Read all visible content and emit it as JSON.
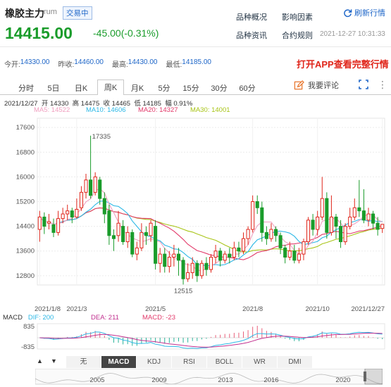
{
  "header": {
    "name": "橡胶主力",
    "code": "rum",
    "status": "交易中",
    "links": [
      "品种概况",
      "影响因素",
      "品种资讯",
      "合约规则"
    ],
    "refresh": "刷新行情",
    "price": "14415.00",
    "change": "-45.00(-0.31%)",
    "datetime": "2021-12-27 10:31:33"
  },
  "stats": {
    "open_label": "今开:",
    "open": "14330.00",
    "prev_label": "昨收:",
    "prev": "14460.00",
    "high_label": "最高:",
    "high": "14430.00",
    "low_label": "最低:",
    "low": "14185.00",
    "app_banner": "打开APP查看完整行情"
  },
  "tabs": [
    "分时",
    "5日",
    "日K",
    "周K",
    "月K",
    "5分",
    "15分",
    "30分",
    "60分"
  ],
  "active_tab": "周K",
  "comment_btn": "我要评论",
  "info": {
    "date": "2021/12/27",
    "open": "开 14330",
    "high": "高 14475",
    "close": "收 14465",
    "low": "低 14185",
    "amp": "幅 0.91%"
  },
  "ma": {
    "ma5": "MA5: 14522",
    "ma10": "MA10: 14606",
    "ma20": "MA20: 14327",
    "ma30": "MA30: 14001"
  },
  "colors": {
    "ma5": "#f0a0c0",
    "ma10": "#2cb8e6",
    "ma20": "#e23a6a",
    "ma30": "#a8c416",
    "up": "#e0261b",
    "down": "#1a9c2b"
  },
  "chart_data": {
    "type": "candlestick",
    "y_ticks": [
      "17600",
      "16800",
      "16000",
      "15200",
      "14400",
      "13600",
      "12800"
    ],
    "ylim": [
      12500,
      17900
    ],
    "x_labels": [
      "2021/1/8",
      "2021/3",
      "2021/5",
      "2021/8",
      "2021/10",
      "2021/12/27"
    ],
    "annotations": {
      "high": "17335",
      "low": "12515"
    },
    "candles": [
      {
        "o": 14300,
        "c": 14700,
        "h": 14900,
        "l": 13900
      },
      {
        "o": 14700,
        "c": 14400,
        "h": 14850,
        "l": 14150
      },
      {
        "o": 14500,
        "c": 14550,
        "h": 14800,
        "l": 14300
      },
      {
        "o": 14450,
        "c": 14200,
        "h": 14650,
        "l": 14050
      },
      {
        "o": 14200,
        "c": 14650,
        "h": 14900,
        "l": 14100
      },
      {
        "o": 14650,
        "c": 14800,
        "h": 15000,
        "l": 14500
      },
      {
        "o": 14800,
        "c": 14900,
        "h": 15100,
        "l": 14600
      },
      {
        "o": 14900,
        "c": 14700,
        "h": 15000,
        "l": 14500
      },
      {
        "o": 14700,
        "c": 14950,
        "h": 15300,
        "l": 14650
      },
      {
        "o": 15000,
        "c": 15500,
        "h": 15700,
        "l": 14900
      },
      {
        "o": 15500,
        "c": 15900,
        "h": 16100,
        "l": 15300
      },
      {
        "o": 15900,
        "c": 15400,
        "h": 17335,
        "l": 15300
      },
      {
        "o": 15500,
        "c": 16000,
        "h": 16150,
        "l": 15400
      },
      {
        "o": 15900,
        "c": 15300,
        "h": 16000,
        "l": 15100
      },
      {
        "o": 15300,
        "c": 14800,
        "h": 15500,
        "l": 14500
      },
      {
        "o": 14900,
        "c": 14100,
        "h": 15100,
        "l": 13800
      },
      {
        "o": 14100,
        "c": 14000,
        "h": 14300,
        "l": 13600
      },
      {
        "o": 14100,
        "c": 14500,
        "h": 14900,
        "l": 13900
      },
      {
        "o": 14400,
        "c": 13900,
        "h": 14600,
        "l": 13800
      },
      {
        "o": 13900,
        "c": 14200,
        "h": 14400,
        "l": 13700
      },
      {
        "o": 14200,
        "c": 13500,
        "h": 14300,
        "l": 13400
      },
      {
        "o": 13500,
        "c": 13700,
        "h": 13900,
        "l": 13300
      },
      {
        "o": 13700,
        "c": 14200,
        "h": 14500,
        "l": 13600
      },
      {
        "o": 14200,
        "c": 14100,
        "h": 14400,
        "l": 13800
      },
      {
        "o": 14100,
        "c": 14500,
        "h": 14600,
        "l": 13900
      },
      {
        "o": 14400,
        "c": 13200,
        "h": 14600,
        "l": 13000
      },
      {
        "o": 13200,
        "c": 13500,
        "h": 13700,
        "l": 12900
      },
      {
        "o": 13500,
        "c": 13100,
        "h": 13700,
        "l": 12900
      },
      {
        "o": 13100,
        "c": 13400,
        "h": 13600,
        "l": 12900
      },
      {
        "o": 13400,
        "c": 13500,
        "h": 13800,
        "l": 13100
      },
      {
        "o": 13500,
        "c": 13300,
        "h": 13700,
        "l": 12800
      },
      {
        "o": 13300,
        "c": 12700,
        "h": 13400,
        "l": 12515
      },
      {
        "o": 12700,
        "c": 12900,
        "h": 13200,
        "l": 12600
      },
      {
        "o": 12900,
        "c": 13200,
        "h": 13400,
        "l": 12700
      },
      {
        "o": 13200,
        "c": 12800,
        "h": 13300,
        "l": 12600
      },
      {
        "o": 12800,
        "c": 13200,
        "h": 13300,
        "l": 12700
      },
      {
        "o": 13200,
        "c": 13000,
        "h": 13400,
        "l": 12800
      },
      {
        "o": 13000,
        "c": 13400,
        "h": 13500,
        "l": 12900
      },
      {
        "o": 13400,
        "c": 13600,
        "h": 13800,
        "l": 13200
      },
      {
        "o": 13600,
        "c": 13300,
        "h": 13700,
        "l": 13100
      },
      {
        "o": 13300,
        "c": 13500,
        "h": 13600,
        "l": 13200
      },
      {
        "o": 13500,
        "c": 13400,
        "h": 13700,
        "l": 13200
      },
      {
        "o": 13400,
        "c": 13700,
        "h": 13900,
        "l": 13300
      },
      {
        "o": 13700,
        "c": 13600,
        "h": 13900,
        "l": 13400
      },
      {
        "o": 13600,
        "c": 14000,
        "h": 14200,
        "l": 13500
      },
      {
        "o": 14000,
        "c": 14300,
        "h": 14400,
        "l": 13800
      },
      {
        "o": 14300,
        "c": 15200,
        "h": 15400,
        "l": 14200
      },
      {
        "o": 15200,
        "c": 15000,
        "h": 15400,
        "l": 14800
      },
      {
        "o": 15000,
        "c": 14200,
        "h": 15200,
        "l": 13900
      },
      {
        "o": 14200,
        "c": 14000,
        "h": 14400,
        "l": 13800
      },
      {
        "o": 14000,
        "c": 14300,
        "h": 14500,
        "l": 13900
      },
      {
        "o": 14300,
        "c": 14100,
        "h": 14400,
        "l": 13900
      },
      {
        "o": 14100,
        "c": 13700,
        "h": 14200,
        "l": 13500
      },
      {
        "o": 13700,
        "c": 13400,
        "h": 13800,
        "l": 13200
      },
      {
        "o": 13400,
        "c": 13600,
        "h": 13900,
        "l": 13300
      },
      {
        "o": 13600,
        "c": 13300,
        "h": 13800,
        "l": 13200
      },
      {
        "o": 13300,
        "c": 13500,
        "h": 13700,
        "l": 13200
      },
      {
        "o": 13500,
        "c": 13900,
        "h": 14000,
        "l": 13300
      },
      {
        "o": 13900,
        "c": 14600,
        "h": 14700,
        "l": 13800
      },
      {
        "o": 14600,
        "c": 14300,
        "h": 14800,
        "l": 14100
      },
      {
        "o": 14300,
        "c": 14700,
        "h": 14900,
        "l": 14100
      },
      {
        "o": 14700,
        "c": 15300,
        "h": 16000,
        "l": 14600
      },
      {
        "o": 15300,
        "c": 14200,
        "h": 15500,
        "l": 14000
      },
      {
        "o": 14200,
        "c": 14700,
        "h": 15400,
        "l": 14100
      },
      {
        "o": 14700,
        "c": 14400,
        "h": 14800,
        "l": 14000
      },
      {
        "o": 14400,
        "c": 13900,
        "h": 14600,
        "l": 13700
      },
      {
        "o": 13900,
        "c": 14400,
        "h": 14500,
        "l": 13800
      },
      {
        "o": 14400,
        "c": 14700,
        "h": 15000,
        "l": 14300
      },
      {
        "o": 14700,
        "c": 15000,
        "h": 15300,
        "l": 14600
      },
      {
        "o": 15000,
        "c": 14900,
        "h": 15900,
        "l": 14700
      },
      {
        "o": 14900,
        "c": 14600,
        "h": 15600,
        "l": 14500
      },
      {
        "o": 14600,
        "c": 14800,
        "h": 15000,
        "l": 14400
      },
      {
        "o": 14800,
        "c": 14500,
        "h": 14900,
        "l": 14300
      },
      {
        "o": 14500,
        "c": 14300,
        "h": 14700,
        "l": 14100
      },
      {
        "o": 14330,
        "c": 14465,
        "h": 14475,
        "l": 14185
      }
    ],
    "macd": {
      "label": "MACD",
      "dif": "DIF: 200",
      "dea": "DEA: 211",
      "macd": "MACD: -23",
      "y_ticks": [
        "835",
        "-835"
      ]
    }
  },
  "indicator_tabs": [
    "无",
    "MACD",
    "KDJ",
    "RSI",
    "BOLL",
    "WR",
    "DMI"
  ],
  "active_indicator": "MACD",
  "timeline_years": [
    "2005",
    "2009",
    "2013",
    "2016",
    "2020"
  ],
  "nav_arrows": {
    "up": "▲",
    "down": "▼"
  }
}
